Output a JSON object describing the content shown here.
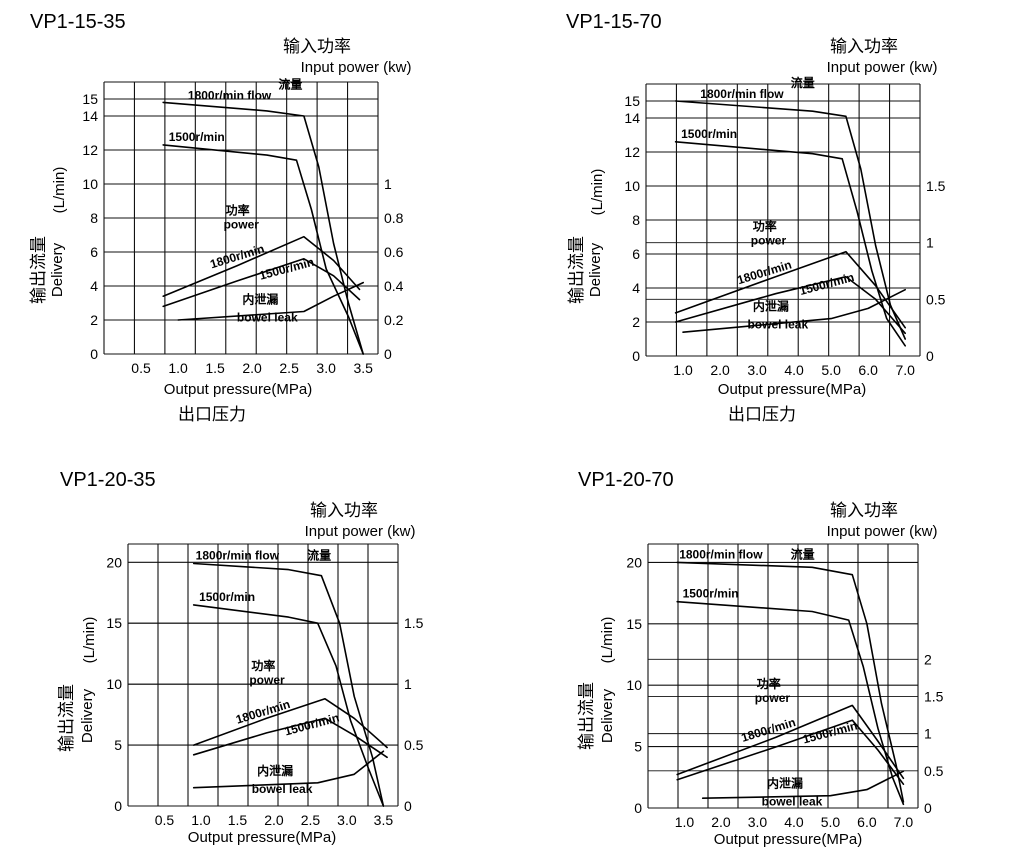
{
  "chart_data": [
    {
      "type": "line",
      "title": "VP1-15-35",
      "power_axis_label_cn": "输入功率",
      "power_axis_label_en": "Input power (kw)",
      "ylabel_cn": "输出流量",
      "ylabel_en": "Delivery",
      "ylabel_unit": "(L/min)",
      "xlabel_en": "Output pressure(MPa)",
      "xlabel_cn": "出口压力",
      "x_ticks": [
        "0.5",
        "1.0",
        "1.5",
        "2.0",
        "2.5",
        "3.0",
        "3.5"
      ],
      "y_ticks": [
        "0",
        "2",
        "4",
        "6",
        "8",
        "10",
        "12",
        "14",
        "15"
      ],
      "y2_ticks": [
        "0",
        "0.2",
        "0.4",
        "0.6",
        "0.8",
        "1"
      ],
      "xlim": [
        0,
        3.7
      ],
      "ylim": [
        0,
        16
      ],
      "y2lim": [
        0,
        1.6
      ],
      "annotations": {
        "flow_cn": "流量",
        "flow_1800": "1800r/min flow",
        "flow_1500": "1500r/min",
        "power_cn": "功率",
        "power_en": "power",
        "power_1800": "1800r/min",
        "power_1500": "1500r/min",
        "leak_cn": "内泄漏",
        "leak_en": "bowel leak"
      },
      "series": [
        {
          "axis": "delivery",
          "x": [
            0.8,
            2.2,
            2.7,
            2.9,
            3.1,
            3.3,
            3.5
          ],
          "y": [
            14.8,
            14.3,
            14.0,
            11.0,
            6.5,
            3.0,
            0
          ]
        },
        {
          "axis": "delivery",
          "x": [
            0.8,
            2.2,
            2.6,
            2.8,
            3.0,
            3.3,
            3.5
          ],
          "y": [
            12.3,
            11.7,
            11.4,
            8.5,
            5.0,
            2.2,
            0
          ]
        },
        {
          "axis": "power",
          "x": [
            0.8,
            1.8,
            2.7,
            3.1,
            3.45
          ],
          "y": [
            0.34,
            0.52,
            0.69,
            0.55,
            0.38
          ]
        },
        {
          "axis": "power",
          "x": [
            0.8,
            1.8,
            2.7,
            3.1,
            3.45
          ],
          "y": [
            0.28,
            0.43,
            0.56,
            0.46,
            0.32
          ]
        },
        {
          "axis": "delivery",
          "x": [
            1.0,
            2.7,
            3.1,
            3.5
          ],
          "y": [
            2.0,
            2.5,
            3.4,
            4.2
          ]
        }
      ]
    },
    {
      "type": "line",
      "title": "VP1-15-70",
      "power_axis_label_cn": "输入功率",
      "power_axis_label_en": "Input power (kw)",
      "ylabel_cn": "输出流量",
      "ylabel_en": "Delivery",
      "ylabel_unit": "(L/min)",
      "xlabel_en": "Output pressure(MPa)",
      "xlabel_cn": "出口压力",
      "x_ticks": [
        "1.0",
        "2.0",
        "3.0",
        "4.0",
        "5.0",
        "6.0",
        "7.0"
      ],
      "y_ticks": [
        "0",
        "2",
        "4",
        "6",
        "8",
        "10",
        "12",
        "14",
        "15"
      ],
      "y2_ticks": [
        "0",
        "0.5",
        "1",
        "1.5"
      ],
      "xlim": [
        0,
        7.4
      ],
      "ylim": [
        0,
        16
      ],
      "y2lim": [
        0,
        2.4
      ],
      "annotations": {
        "flow_cn": "流量",
        "flow_1800": "1800r/min flow",
        "flow_1500": "1500r/min",
        "power_cn": "功率",
        "power_en": "power",
        "power_1800": "1800r/min",
        "power_1500": "1500r/min",
        "leak_cn": "内泄漏",
        "leak_en": "bowel leak"
      },
      "series": [
        {
          "axis": "delivery",
          "x": [
            0.8,
            4.5,
            5.4,
            5.8,
            6.2,
            6.6,
            7.0
          ],
          "y": [
            15.0,
            14.4,
            14.1,
            11.0,
            6.5,
            3.0,
            1.0
          ]
        },
        {
          "axis": "delivery",
          "x": [
            0.8,
            4.5,
            5.3,
            5.7,
            6.1,
            6.5,
            7.0
          ],
          "y": [
            12.6,
            11.9,
            11.6,
            8.5,
            5.0,
            2.2,
            0.6
          ]
        },
        {
          "axis": "power",
          "x": [
            0.8,
            3.5,
            5.4,
            6.2,
            7.0
          ],
          "y": [
            0.38,
            0.7,
            0.92,
            0.62,
            0.25
          ]
        },
        {
          "axis": "power",
          "x": [
            0.8,
            3.5,
            5.4,
            6.2,
            7.0
          ],
          "y": [
            0.3,
            0.55,
            0.7,
            0.5,
            0.2
          ]
        },
        {
          "axis": "delivery",
          "x": [
            1.0,
            5.0,
            6.0,
            7.0
          ],
          "y": [
            1.4,
            2.2,
            2.8,
            3.9
          ]
        }
      ]
    },
    {
      "type": "line",
      "title": "VP1-20-35",
      "power_axis_label_cn": "输入功率",
      "power_axis_label_en": "Input power (kw)",
      "ylabel_cn": "输出流量",
      "ylabel_en": "Delivery",
      "ylabel_unit": "(L/min)",
      "xlabel_en": "Output pressure(MPa)",
      "xlabel_cn": "",
      "x_ticks": [
        "0.5",
        "1.0",
        "1.5",
        "2.0",
        "2.5",
        "3.0",
        "3.5"
      ],
      "y_ticks": [
        "0",
        "5",
        "10",
        "15",
        "20"
      ],
      "y2_ticks": [
        "0",
        "0.5",
        "1",
        "1.5"
      ],
      "xlim": [
        0,
        3.7
      ],
      "ylim": [
        0,
        21.5
      ],
      "y2lim": [
        0,
        2.15
      ],
      "annotations": {
        "flow_cn": "流量",
        "flow_1800": "1800r/min flow",
        "flow_1500": "1500r/min",
        "power_cn": "功率",
        "power_en": "power",
        "power_1800": "1800r/min",
        "power_1500": "1500r/min",
        "leak_cn": "内泄漏",
        "leak_en": "bowel leak"
      },
      "series": [
        {
          "axis": "delivery",
          "x": [
            0.9,
            2.2,
            2.65,
            2.9,
            3.1,
            3.35,
            3.5
          ],
          "y": [
            19.9,
            19.4,
            18.9,
            15.0,
            9.0,
            4.0,
            0
          ]
        },
        {
          "axis": "delivery",
          "x": [
            0.9,
            2.2,
            2.6,
            2.85,
            3.05,
            3.3,
            3.5
          ],
          "y": [
            16.5,
            15.5,
            15.0,
            11.5,
            7.0,
            3.0,
            0
          ]
        },
        {
          "axis": "power",
          "x": [
            0.9,
            1.9,
            2.7,
            3.1,
            3.55
          ],
          "y": [
            0.5,
            0.72,
            0.88,
            0.72,
            0.48
          ]
        },
        {
          "axis": "power",
          "x": [
            0.9,
            1.9,
            2.7,
            3.1,
            3.55
          ],
          "y": [
            0.42,
            0.6,
            0.72,
            0.58,
            0.4
          ]
        },
        {
          "axis": "delivery",
          "x": [
            0.9,
            2.6,
            3.1,
            3.5
          ],
          "y": [
            1.5,
            1.9,
            2.6,
            4.5
          ]
        }
      ]
    },
    {
      "type": "line",
      "title": "VP1-20-70",
      "power_axis_label_cn": "输入功率",
      "power_axis_label_en": "Input power (kw)",
      "ylabel_cn": "输出流量",
      "ylabel_en": "Delivery",
      "ylabel_unit": "(L/min)",
      "xlabel_en": "Output pressure(MPa)",
      "xlabel_cn": "",
      "x_ticks": [
        "1.0",
        "2.0",
        "3.0",
        "4.0",
        "5.0",
        "6.0",
        "7.0"
      ],
      "y_ticks": [
        "0",
        "5",
        "10",
        "15",
        "20"
      ],
      "y2_ticks": [
        "0",
        "0.5",
        "1",
        "1.5",
        "2"
      ],
      "xlim": [
        0,
        7.4
      ],
      "ylim": [
        0,
        21.5
      ],
      "y2lim": [
        0,
        3.55
      ],
      "annotations": {
        "flow_cn": "流量",
        "flow_1800": "1800r/min flow",
        "flow_1500": "1500r/min",
        "power_cn": "功率",
        "power_en": "power",
        "power_1800": "1800r/min",
        "power_1500": "1500r/min",
        "leak_cn": "内泄漏",
        "leak_en": "bowel leak"
      },
      "series": [
        {
          "axis": "delivery",
          "x": [
            0.8,
            4.5,
            5.6,
            6.0,
            6.4,
            6.8,
            7.0
          ],
          "y": [
            20.0,
            19.6,
            19.0,
            15.0,
            8.5,
            3.5,
            0.5
          ]
        },
        {
          "axis": "delivery",
          "x": [
            0.8,
            4.5,
            5.5,
            5.9,
            6.3,
            6.7,
            7.0
          ],
          "y": [
            16.8,
            16.0,
            15.3,
            11.5,
            6.5,
            2.5,
            0.3
          ]
        },
        {
          "axis": "power",
          "x": [
            0.8,
            3.5,
            5.6,
            6.3,
            7.0
          ],
          "y": [
            0.45,
            0.95,
            1.38,
            0.9,
            0.4
          ]
        },
        {
          "axis": "power",
          "x": [
            0.8,
            3.5,
            5.6,
            6.3,
            7.0
          ],
          "y": [
            0.38,
            0.82,
            1.18,
            0.78,
            0.32
          ]
        },
        {
          "axis": "delivery",
          "x": [
            1.5,
            5.0,
            6.0,
            7.0
          ],
          "y": [
            0.8,
            1.0,
            1.5,
            3.0
          ]
        }
      ]
    }
  ]
}
